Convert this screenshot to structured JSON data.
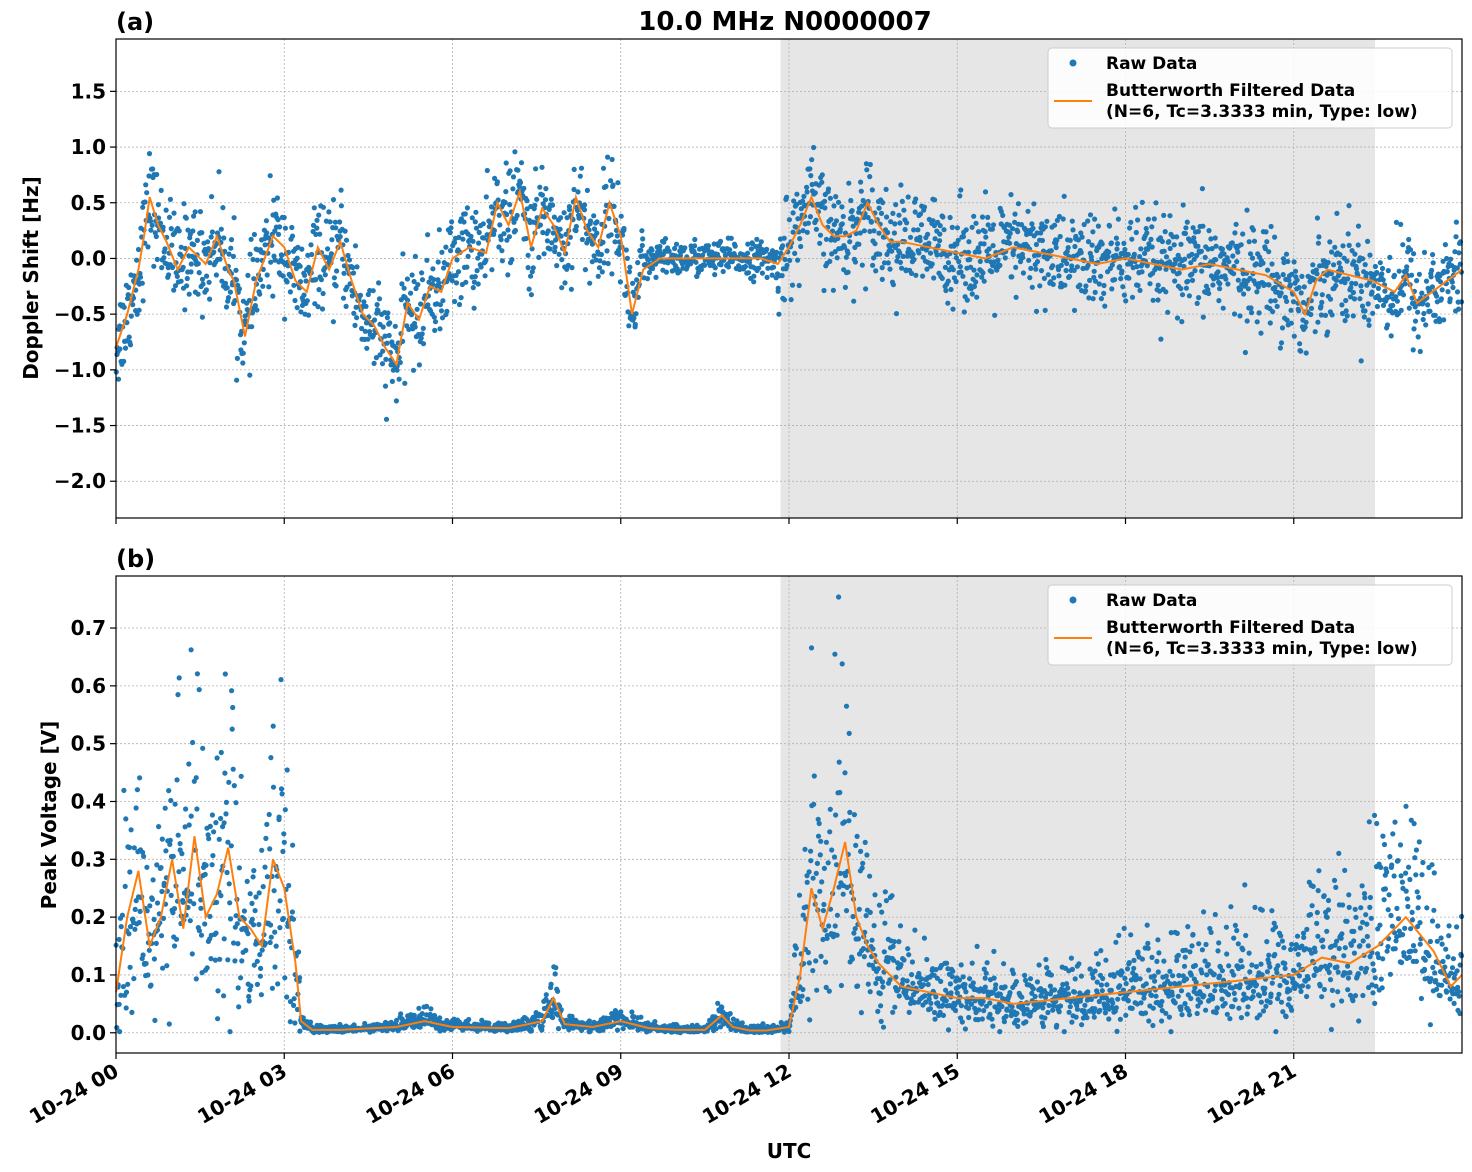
{
  "figure": {
    "title": "10.0 MHz N0000007",
    "xlabel": "UTC",
    "xticks": [
      "10-24 00",
      "10-24 03",
      "10-24 06",
      "10-24 09",
      "10-24 12",
      "10-24 15",
      "10-24 18",
      "10-24 21"
    ],
    "night_shading": {
      "start_hour": 11.85,
      "end_hour": 22.45,
      "color": "#e6e6e6"
    },
    "colors": {
      "raw": "#1f77b4",
      "filtered": "#ff7f0e",
      "grid": "#b0b0b0"
    }
  },
  "chart_data": [
    {
      "type": "scatter",
      "panel_label": "(a)",
      "ylabel": "Doppler Shift [Hz]",
      "x_range_hours": [
        0,
        24
      ],
      "ylim": [
        -2.33,
        1.97
      ],
      "yticks": [
        -2.0,
        -1.5,
        -1.0,
        -0.5,
        0.0,
        0.5,
        1.0,
        1.5
      ],
      "ytick_labels": [
        "−2.0",
        "−1.5",
        "−1.0",
        "−0.5",
        "0.0",
        "0.5",
        "1.0",
        "1.5"
      ],
      "grid": true,
      "legend": {
        "placement": "upper right",
        "entries": [
          "Raw Data",
          "Butterworth Filtered Data",
          "(N=6, Tc=3.3333 min, Type: low)"
        ]
      },
      "series": [
        {
          "name": "Butterworth Filtered Data",
          "x_hours": [
            0,
            0.2,
            0.4,
            0.5,
            0.6,
            0.75,
            0.9,
            1.1,
            1.3,
            1.6,
            1.8,
            2.0,
            2.1,
            2.3,
            2.5,
            2.8,
            3.0,
            3.2,
            3.4,
            3.6,
            3.8,
            4.0,
            4.2,
            4.4,
            4.6,
            4.8,
            5.0,
            5.2,
            5.4,
            5.6,
            5.8,
            6.0,
            6.3,
            6.6,
            6.8,
            7.0,
            7.2,
            7.4,
            7.6,
            7.8,
            8.0,
            8.2,
            8.4,
            8.6,
            8.8,
            9.0,
            9.2,
            9.4,
            9.7,
            10.0,
            10.5,
            11.0,
            11.5,
            11.8,
            12.0,
            12.2,
            12.4,
            12.6,
            12.8,
            13.0,
            13.2,
            13.4,
            13.6,
            13.8,
            14.0,
            14.5,
            15.0,
            15.5,
            16.0,
            16.5,
            17.0,
            17.5,
            18.0,
            18.5,
            19.0,
            19.5,
            20.0,
            20.5,
            21.0,
            21.2,
            21.4,
            21.6,
            22.0,
            22.4,
            22.8,
            23.0,
            23.2,
            23.6,
            24.0
          ],
          "values": [
            -0.8,
            -0.5,
            -0.1,
            0.2,
            0.55,
            0.3,
            0.15,
            -0.1,
            0.1,
            -0.05,
            0.2,
            -0.1,
            -0.2,
            -0.7,
            -0.2,
            0.2,
            0.1,
            -0.2,
            -0.3,
            0.1,
            -0.1,
            0.15,
            -0.2,
            -0.5,
            -0.6,
            -0.8,
            -0.95,
            -0.4,
            -0.55,
            -0.25,
            -0.3,
            0.0,
            0.1,
            0.05,
            0.5,
            0.3,
            0.6,
            0.1,
            0.45,
            0.3,
            0.05,
            0.55,
            0.25,
            0.1,
            0.5,
            0.2,
            -0.5,
            -0.1,
            0.0,
            0.0,
            0.0,
            0.0,
            0.0,
            -0.05,
            0.1,
            0.3,
            0.55,
            0.3,
            0.2,
            0.2,
            0.25,
            0.5,
            0.3,
            0.15,
            0.15,
            0.1,
            0.05,
            0.0,
            0.1,
            0.05,
            0.0,
            -0.05,
            0.0,
            -0.05,
            -0.1,
            -0.05,
            -0.1,
            -0.15,
            -0.3,
            -0.5,
            -0.2,
            -0.1,
            -0.15,
            -0.2,
            -0.3,
            -0.15,
            -0.4,
            -0.25,
            -0.1
          ]
        }
      ]
    },
    {
      "type": "scatter",
      "panel_label": "(b)",
      "ylabel": "Peak Voltage [V]",
      "x_range_hours": [
        0,
        24
      ],
      "ylim": [
        -0.035,
        0.79
      ],
      "yticks": [
        0.0,
        0.1,
        0.2,
        0.3,
        0.4,
        0.5,
        0.6,
        0.7
      ],
      "ytick_labels": [
        "0.0",
        "0.1",
        "0.2",
        "0.3",
        "0.4",
        "0.5",
        "0.6",
        "0.7"
      ],
      "grid": true,
      "legend": {
        "placement": "upper right",
        "entries": [
          "Raw Data",
          "Butterworth Filtered Data",
          "(N=6, Tc=3.3333 min, Type: low)"
        ]
      },
      "series": [
        {
          "name": "Butterworth Filtered Data",
          "x_hours": [
            0,
            0.2,
            0.4,
            0.6,
            0.8,
            1.0,
            1.2,
            1.4,
            1.6,
            1.8,
            2.0,
            2.2,
            2.4,
            2.6,
            2.8,
            3.0,
            3.2,
            3.3,
            3.5,
            4.0,
            5.0,
            5.5,
            6.0,
            7.0,
            7.6,
            7.8,
            8.0,
            8.5,
            9.0,
            9.5,
            10.0,
            10.5,
            10.8,
            11.0,
            11.3,
            11.6,
            12.0,
            12.2,
            12.4,
            12.6,
            12.8,
            13.0,
            13.2,
            13.4,
            13.6,
            14.0,
            14.5,
            15.0,
            15.5,
            16.0,
            17.0,
            18.0,
            19.0,
            20.0,
            21.0,
            21.5,
            22.0,
            22.5,
            23.0,
            23.5,
            23.8,
            24.0
          ],
          "values": [
            0.07,
            0.2,
            0.28,
            0.15,
            0.2,
            0.3,
            0.18,
            0.34,
            0.2,
            0.24,
            0.32,
            0.2,
            0.18,
            0.15,
            0.3,
            0.25,
            0.12,
            0.02,
            0.005,
            0.005,
            0.01,
            0.02,
            0.01,
            0.008,
            0.02,
            0.06,
            0.015,
            0.01,
            0.02,
            0.008,
            0.005,
            0.005,
            0.03,
            0.01,
            0.004,
            0.004,
            0.01,
            0.1,
            0.25,
            0.18,
            0.25,
            0.33,
            0.2,
            0.15,
            0.12,
            0.08,
            0.07,
            0.06,
            0.06,
            0.05,
            0.06,
            0.07,
            0.08,
            0.09,
            0.1,
            0.13,
            0.12,
            0.15,
            0.2,
            0.14,
            0.08,
            0.1
          ]
        }
      ]
    }
  ]
}
